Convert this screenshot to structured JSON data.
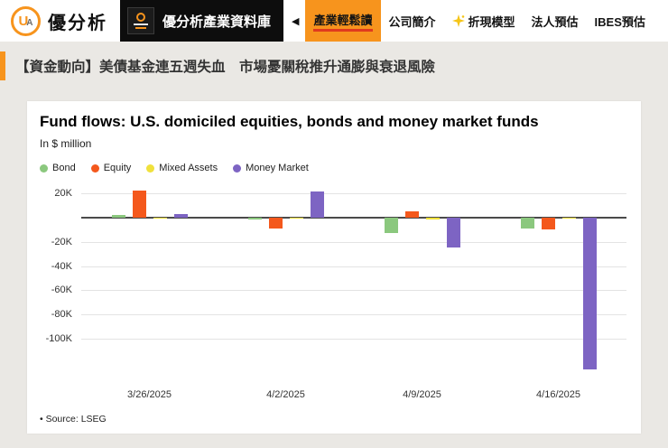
{
  "header": {
    "brand": {
      "mono_u": "U",
      "mono_a": "A",
      "name": "優分析"
    },
    "library_banner": {
      "label": "優分析產業資料庫"
    },
    "collapse_arrow": "◀",
    "nav_items": [
      {
        "label": "產業輕鬆讀",
        "active": true
      },
      {
        "label": "公司簡介",
        "active": false
      },
      {
        "label": "折現模型",
        "active": false,
        "icon": "sparkle-icon"
      },
      {
        "label": "法人預估",
        "active": false
      },
      {
        "label": "IBES預估",
        "active": false
      }
    ]
  },
  "headline": {
    "text": "【資金動向】美債基金連五週失血　市場憂關稅推升通膨與衰退風險"
  },
  "chart_data": {
    "type": "bar",
    "title": "Fund flows: U.S. domiciled equities, bonds and money market funds",
    "subtitle": "In $ million",
    "categories": [
      "3/26/2025",
      "4/2/2025",
      "4/9/2025",
      "4/16/2025"
    ],
    "series": [
      {
        "name": "Bond",
        "color": "#8bc87e",
        "values": [
          2,
          -2,
          -13,
          -9
        ]
      },
      {
        "name": "Equity",
        "color": "#f4581c",
        "values": [
          22,
          -9,
          5,
          -10
        ]
      },
      {
        "name": "Mixed Assets",
        "color": "#f0e13c",
        "values": [
          -0.5,
          -0.5,
          -1.5,
          -0.5
        ]
      },
      {
        "name": "Money Market",
        "color": "#7d64c3",
        "values": [
          3,
          21,
          -25,
          -125
        ]
      }
    ],
    "ylim": [
      -135,
      27
    ],
    "yticks": [
      {
        "value": 20,
        "label": "20K"
      },
      {
        "value": -20,
        "label": "-20K"
      },
      {
        "value": -40,
        "label": "-40K"
      },
      {
        "value": -60,
        "label": "-60K"
      },
      {
        "value": -80,
        "label": "-80K"
      },
      {
        "value": -100,
        "label": "-100K"
      }
    ],
    "grid": true,
    "legend_position": "top-left",
    "source": "• Source: LSEG"
  },
  "colors": {
    "accent_orange": "#f7941d",
    "active_underline": "#e03a1e",
    "page_bg": "#eae8e4",
    "header_bg": "#ffffff"
  }
}
